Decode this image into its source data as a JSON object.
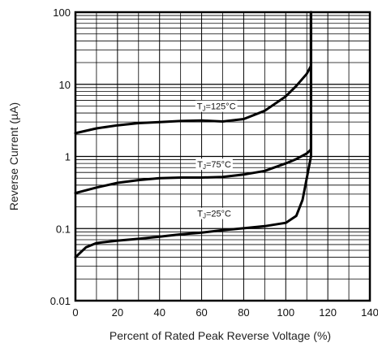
{
  "chart_data": {
    "type": "line",
    "title": "",
    "xlabel": "Percent of Rated Peak Reverse Voltage (%)",
    "ylabel": "Reverse Current (µA)",
    "xlim": [
      0,
      140
    ],
    "ylim": [
      0.01,
      100
    ],
    "yscale": "log",
    "grid": true,
    "x_ticks": [
      "0",
      "20",
      "40",
      "60",
      "80",
      "100",
      "120",
      "140"
    ],
    "y_ticks": [
      "100",
      "10",
      "1",
      "0.1",
      "0.01"
    ],
    "series": [
      {
        "name": "TJ=125°C",
        "label_main": "T",
        "label_sub": "J",
        "label_rest": "=125°C",
        "x": [
          0,
          10,
          20,
          30,
          40,
          50,
          60,
          70,
          80,
          90,
          100,
          105,
          110,
          112
        ],
        "y": [
          2.1,
          2.45,
          2.7,
          2.9,
          3.0,
          3.1,
          3.15,
          3.05,
          3.3,
          4.3,
          6.8,
          9.5,
          14,
          18
        ],
        "vertical_to": 100
      },
      {
        "name": "TJ=75°C",
        "label_main": "T",
        "label_sub": "J",
        "label_rest": "=75°C",
        "x": [
          0,
          10,
          20,
          30,
          40,
          50,
          60,
          70,
          80,
          90,
          100,
          105,
          110,
          112
        ],
        "y": [
          0.31,
          0.37,
          0.43,
          0.47,
          0.5,
          0.51,
          0.51,
          0.52,
          0.56,
          0.63,
          0.8,
          0.92,
          1.1,
          1.25
        ],
        "vertical_to": 100
      },
      {
        "name": "TJ=25°C",
        "label_main": "T",
        "label_sub": "J",
        "label_rest": "=25°C",
        "x": [
          0,
          5,
          10,
          20,
          30,
          40,
          50,
          60,
          70,
          80,
          90,
          100,
          105,
          108,
          110,
          112
        ],
        "y": [
          0.04,
          0.055,
          0.063,
          0.068,
          0.072,
          0.077,
          0.083,
          0.088,
          0.095,
          0.101,
          0.108,
          0.12,
          0.15,
          0.25,
          0.5,
          1.0
        ],
        "vertical_to": 100
      }
    ]
  }
}
